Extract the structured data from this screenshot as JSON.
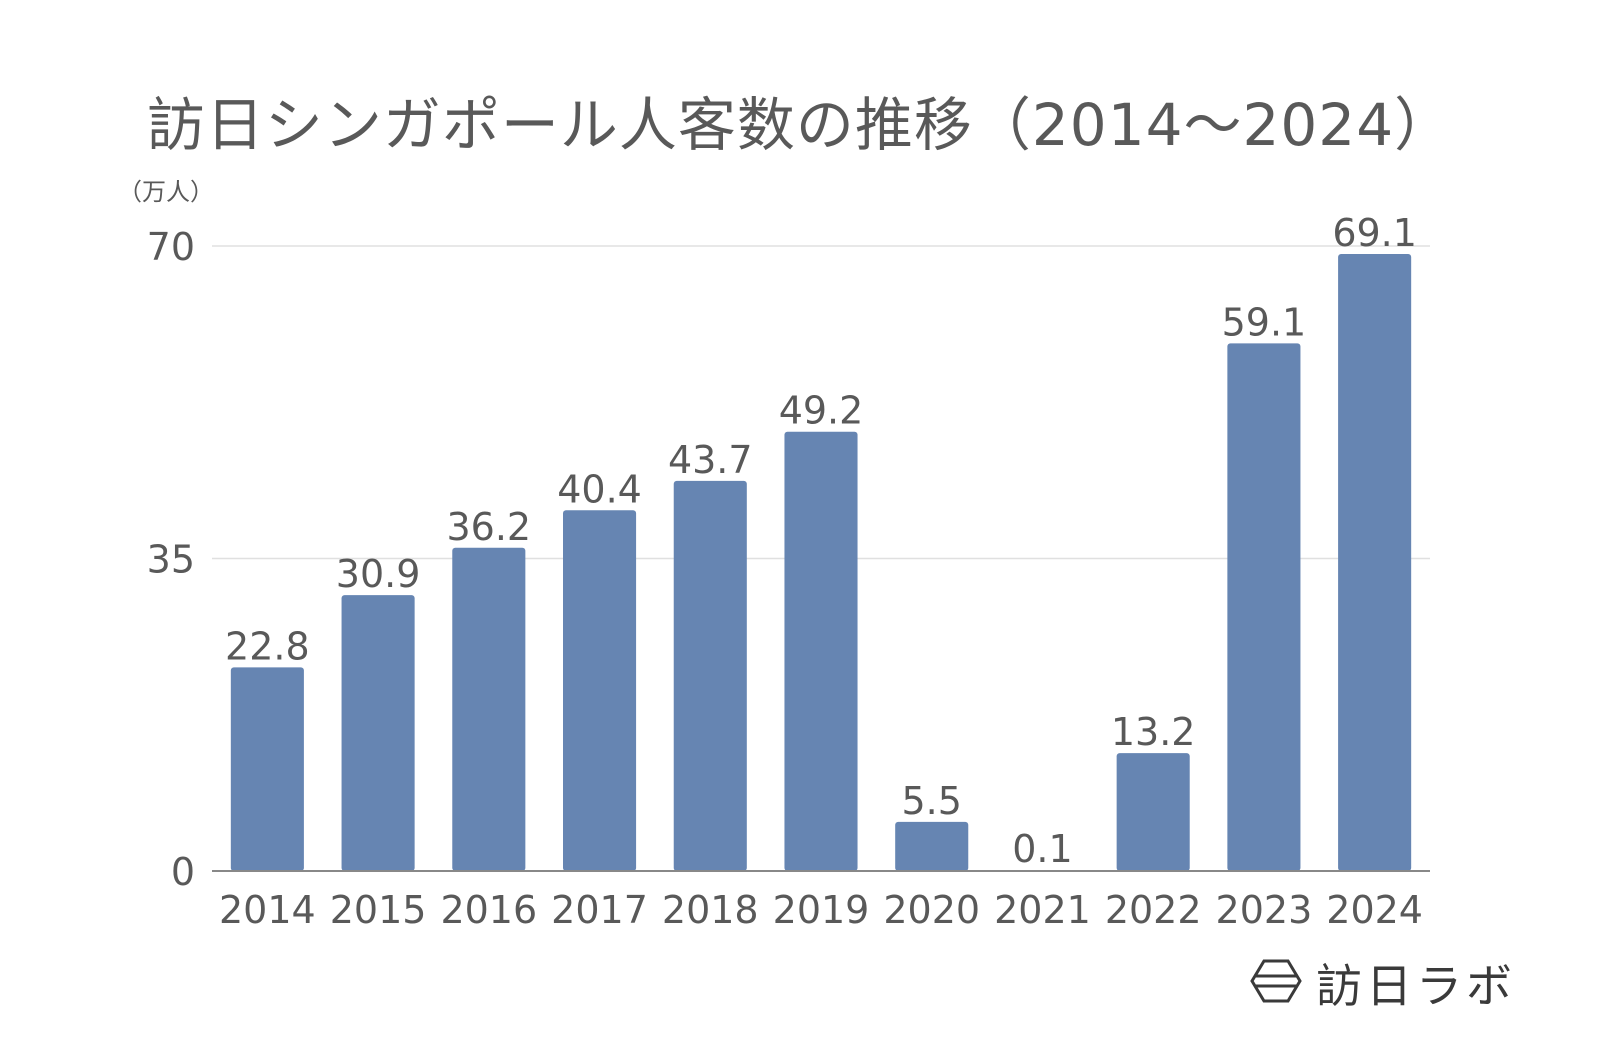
{
  "chart_data": {
    "type": "bar",
    "title": "訪日シンガポール人客数の推移（2014〜2024）",
    "unit_label": "（万人）",
    "categories": [
      "2014",
      "2015",
      "2016",
      "2017",
      "2018",
      "2019",
      "2020",
      "2021",
      "2022",
      "2023",
      "2024"
    ],
    "values": [
      22.8,
      30.9,
      36.2,
      40.4,
      43.7,
      49.2,
      5.5,
      0.1,
      13.2,
      59.1,
      69.1
    ],
    "data_labels": [
      "22.8",
      "30.9",
      "36.2",
      "40.4",
      "43.7",
      "49.2",
      "5.5",
      "0.1",
      "13.2",
      "59.1",
      "69.1"
    ],
    "ylim": [
      0,
      70
    ],
    "yticks": [
      0,
      35,
      70
    ],
    "grid": true,
    "legend": "none",
    "colors": {
      "bar": "#6685b2",
      "grid": "#e0e0e0",
      "axis": "#888888",
      "text": "#595959"
    }
  },
  "brand": {
    "name": "訪日ラボ",
    "logo_icon": "hexagon-logo-icon"
  }
}
